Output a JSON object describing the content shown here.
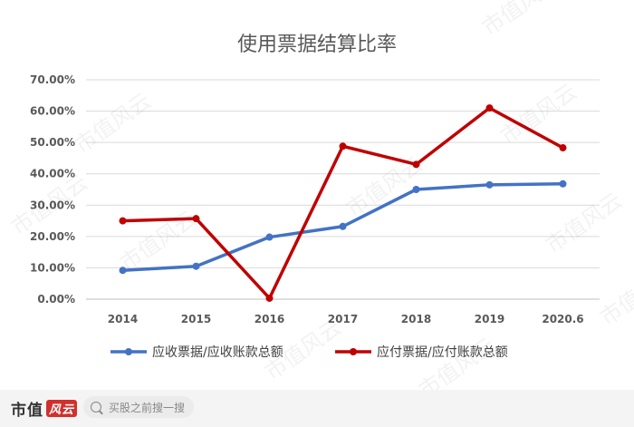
{
  "chart_data": {
    "type": "line",
    "title": "使用票据结算比率",
    "categories": [
      "2014",
      "2015",
      "2016",
      "2017",
      "2018",
      "2019",
      "2020.6"
    ],
    "y_ticks": [
      "0.00%",
      "10.00%",
      "20.00%",
      "30.00%",
      "40.00%",
      "50.00%",
      "60.00%",
      "70.00%"
    ],
    "ylim": [
      0,
      70
    ],
    "grid": true,
    "legend_position": "bottom",
    "series": [
      {
        "name": "应收票据/应收账款总额",
        "color": "#4472c4",
        "values": [
          9.2,
          10.5,
          19.8,
          23.2,
          35.0,
          36.5,
          36.8
        ]
      },
      {
        "name": "应付票据/应付账款总额",
        "color": "#c00000",
        "values": [
          25.0,
          25.7,
          0.3,
          48.8,
          43.0,
          61.0,
          48.3
        ]
      }
    ]
  },
  "watermark": "市值风云",
  "footer": {
    "brand": "市值",
    "brand_badge": "风云",
    "search_icon": "search-icon",
    "search_placeholder": "买股之前搜一搜"
  }
}
